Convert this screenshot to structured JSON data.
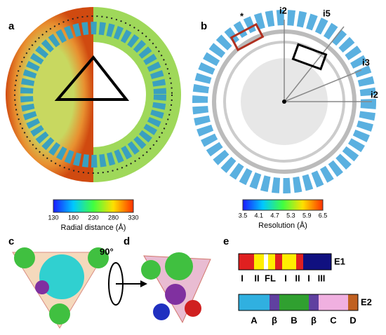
{
  "panel_labels": [
    "a",
    "b",
    "c",
    "d",
    "e"
  ],
  "colorbar_a": {
    "ticks": [
      "130",
      "180",
      "230",
      "280",
      "330"
    ],
    "label": "Radial distance (Å)"
  },
  "colorbar_b": {
    "ticks": [
      "3.5",
      "4.1",
      "4.7",
      "5.3",
      "5.9",
      "6.5"
    ],
    "label": "Resolution (Å)"
  },
  "symmetry_axes": [
    "i2",
    "i5",
    "i3",
    "i2"
  ],
  "asterisk": "*",
  "rotation": "90°",
  "e1": {
    "name": "E1",
    "domains": [
      "I",
      "II",
      "FL",
      "I",
      "II",
      "I",
      "III"
    ]
  },
  "e2": {
    "name": "E2",
    "domains": [
      "A",
      "β",
      "B",
      "β",
      "C",
      "D"
    ]
  }
}
